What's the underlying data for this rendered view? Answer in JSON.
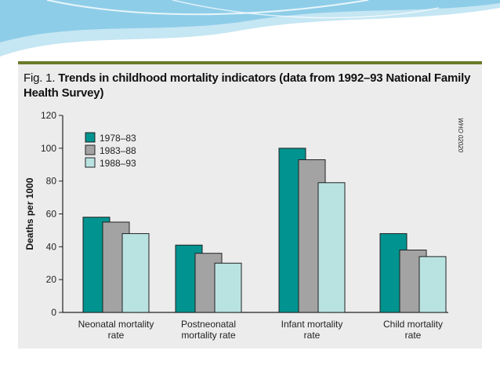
{
  "figure": {
    "prefix": "Fig. 1.",
    "title": "Trends in childhood mortality indicators (data from 1992–93 National Family Health Survey)",
    "side_code": "WHO 02020"
  },
  "colors": {
    "series": [
      "#00938f",
      "#a3a3a3",
      "#b9e3e1"
    ],
    "axis": "#222222",
    "panel": "#ececec",
    "rule": "#6a7a2a"
  },
  "chart_data": {
    "type": "bar",
    "ylabel": "Deaths per 1000",
    "ylim": [
      0,
      120
    ],
    "yticks": [
      0,
      20,
      40,
      60,
      80,
      100,
      120
    ],
    "categories": [
      [
        "Neonatal mortality",
        "rate"
      ],
      [
        "Postneonatal",
        "mortality rate"
      ],
      [
        "Infant mortality",
        "rate"
      ],
      [
        "Child mortality",
        "rate"
      ]
    ],
    "series": [
      {
        "name": "1978–83",
        "values": [
          58,
          41,
          100,
          48
        ]
      },
      {
        "name": "1983–88",
        "values": [
          55,
          36,
          93,
          38
        ]
      },
      {
        "name": "1988–93",
        "values": [
          48,
          30,
          79,
          34
        ]
      }
    ],
    "legend": "top-left",
    "grid": false
  }
}
